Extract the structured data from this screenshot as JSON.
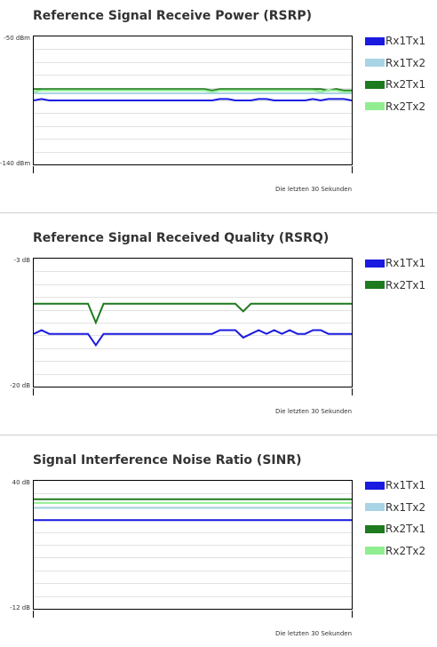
{
  "legend_labels": {
    "rx1tx1": "Rx1Tx1",
    "rx1tx2": "Rx1Tx2",
    "rx2tx1": "Rx2Tx1",
    "rx2tx2": "Rx2Tx2"
  },
  "colors": {
    "rx1tx1": "#1a1ae0",
    "rx1tx2": "#a8d4e6",
    "rx2tx1": "#1e7a1e",
    "rx2tx2": "#90ee90"
  },
  "chart_data": [
    {
      "type": "line",
      "title": "Reference Signal Receive Power (RSRP)",
      "ymax_label": "-50 dBm",
      "ymin_label": "-140 dBm",
      "ylim": [
        -140,
        -50
      ],
      "xlabel": "Die letzten 30 Sekunden",
      "grid": true,
      "series": [
        {
          "key": "rx1tx1",
          "name": "Rx1Tx1",
          "values": [
            -95,
            -94,
            -95,
            -95,
            -95,
            -95,
            -95,
            -95,
            -95,
            -95,
            -95,
            -95,
            -95,
            -95,
            -95,
            -95,
            -95,
            -95,
            -95,
            -95,
            -95,
            -95,
            -95,
            -95,
            -94,
            -94,
            -95,
            -95,
            -95,
            -94,
            -94,
            -95,
            -95,
            -95,
            -95,
            -95,
            -94,
            -95,
            -94,
            -94,
            -94,
            -95
          ]
        },
        {
          "key": "rx1tx2",
          "name": "Rx1Tx2",
          "values": [
            -90,
            -90,
            -90,
            -90,
            -90,
            -90,
            -90,
            -90,
            -90,
            -90,
            -90,
            -90,
            -90,
            -90,
            -90,
            -90,
            -90,
            -90,
            -90,
            -90,
            -90,
            -90,
            -90,
            -90,
            -90,
            -90,
            -90,
            -90,
            -90,
            -90,
            -90,
            -90,
            -90,
            -90,
            -90,
            -90,
            -90,
            -90,
            -90,
            -90,
            -90,
            -90
          ]
        },
        {
          "key": "rx2tx1",
          "name": "Rx2Tx1",
          "values": [
            -87,
            -87,
            -87,
            -87,
            -87,
            -87,
            -87,
            -87,
            -87,
            -87,
            -87,
            -87,
            -87,
            -87,
            -87,
            -87,
            -87,
            -87,
            -87,
            -87,
            -87,
            -87,
            -87,
            -88,
            -87,
            -87,
            -87,
            -87,
            -87,
            -87,
            -87,
            -87,
            -87,
            -87,
            -87,
            -87,
            -87,
            -87,
            -88,
            -87,
            -88,
            -88
          ]
        },
        {
          "key": "rx2tx2",
          "name": "Rx2Tx2",
          "values": [
            -89,
            -88,
            -88,
            -88,
            -88,
            -88,
            -88,
            -88,
            -88,
            -88,
            -88,
            -88,
            -88,
            -88,
            -88,
            -88,
            -88,
            -88,
            -88,
            -88,
            -88,
            -88,
            -88,
            -89,
            -88,
            -88,
            -88,
            -88,
            -88,
            -88,
            -88,
            -88,
            -88,
            -88,
            -88,
            -88,
            -88,
            -89,
            -88,
            -88,
            -89,
            -89
          ]
        }
      ]
    },
    {
      "type": "line",
      "title": "Reference Signal Received Quality (RSRQ)",
      "ymax_label": "-3 dB",
      "ymin_label": "-20 dB",
      "ylim": [
        -20,
        -3
      ],
      "xlabel": "Die letzten 30 Sekunden",
      "grid": true,
      "series": [
        {
          "key": "rx1tx1",
          "name": "Rx1Tx1",
          "values": [
            -13,
            -12.5,
            -13,
            -13,
            -13,
            -13,
            -13,
            -13,
            -14.5,
            -13,
            -13,
            -13,
            -13,
            -13,
            -13,
            -13,
            -13,
            -13,
            -13,
            -13,
            -13,
            -13,
            -13,
            -13,
            -12.5,
            -12.5,
            -12.5,
            -13.5,
            -13,
            -12.5,
            -13,
            -12.5,
            -13,
            -12.5,
            -13,
            -13,
            -12.5,
            -12.5,
            -13,
            -13,
            -13,
            -13
          ]
        },
        {
          "key": "rx2tx1",
          "name": "Rx2Tx1",
          "values": [
            -9,
            -9,
            -9,
            -9,
            -9,
            -9,
            -9,
            -9,
            -11.5,
            -9,
            -9,
            -9,
            -9,
            -9,
            -9,
            -9,
            -9,
            -9,
            -9,
            -9,
            -9,
            -9,
            -9,
            -9,
            -9,
            -9,
            -9,
            -10,
            -9,
            -9,
            -9,
            -9,
            -9,
            -9,
            -9,
            -9,
            -9,
            -9,
            -9,
            -9,
            -9,
            -9
          ]
        }
      ]
    },
    {
      "type": "line",
      "title": "Signal Interference Noise Ratio (SINR)",
      "ymax_label": "40 dB",
      "ymin_label": "-12 dB",
      "ylim": [
        -12,
        40
      ],
      "xlabel": "Die letzten 30 Sekunden",
      "grid": true,
      "series": [
        {
          "key": "rx1tx1",
          "name": "Rx1Tx1",
          "values": [
            24,
            24,
            24,
            24,
            24,
            24,
            24,
            24,
            24,
            24,
            24,
            24,
            24,
            24,
            24,
            24,
            24,
            24,
            24,
            24,
            24,
            24,
            24,
            24,
            24,
            24,
            24,
            24,
            24,
            24,
            24,
            24,
            24,
            24,
            24,
            24,
            24,
            24,
            24,
            24,
            24,
            24
          ]
        },
        {
          "key": "rx1tx2",
          "name": "Rx1Tx2",
          "values": [
            29,
            29,
            29,
            29,
            29,
            29,
            29,
            29,
            29,
            29,
            29,
            29,
            29,
            29,
            29,
            29,
            29,
            29,
            29,
            29,
            29,
            29,
            29,
            29,
            29,
            29,
            29,
            29,
            29,
            29,
            29,
            29,
            29,
            29,
            29,
            29,
            29,
            29,
            29,
            29,
            29,
            29
          ]
        },
        {
          "key": "rx2tx1",
          "name": "Rx2Tx1",
          "values": [
            32.5,
            32.5,
            32.5,
            32.5,
            32.5,
            32.5,
            32.5,
            32.5,
            32.5,
            32.5,
            32.5,
            32.5,
            32.5,
            32.5,
            32.5,
            32.5,
            32.5,
            32.5,
            32.5,
            32.5,
            32.5,
            32.5,
            32.5,
            32.5,
            32.5,
            32.5,
            32.5,
            32.5,
            32.5,
            32.5,
            32.5,
            32.5,
            32.5,
            32.5,
            32.5,
            32.5,
            32.5,
            32.5,
            32.5,
            32.5,
            32.5,
            32.5
          ]
        },
        {
          "key": "rx2tx2",
          "name": "Rx2Tx2",
          "values": [
            31,
            31,
            31,
            31,
            31,
            31,
            31,
            31,
            31,
            31,
            31,
            31,
            31,
            31,
            31,
            31,
            31,
            31,
            31,
            31,
            31,
            31,
            31,
            31,
            31,
            31,
            31,
            31,
            31,
            31,
            31,
            31,
            31,
            31,
            31,
            31,
            31,
            31,
            31,
            31,
            31,
            31
          ]
        }
      ]
    }
  ]
}
